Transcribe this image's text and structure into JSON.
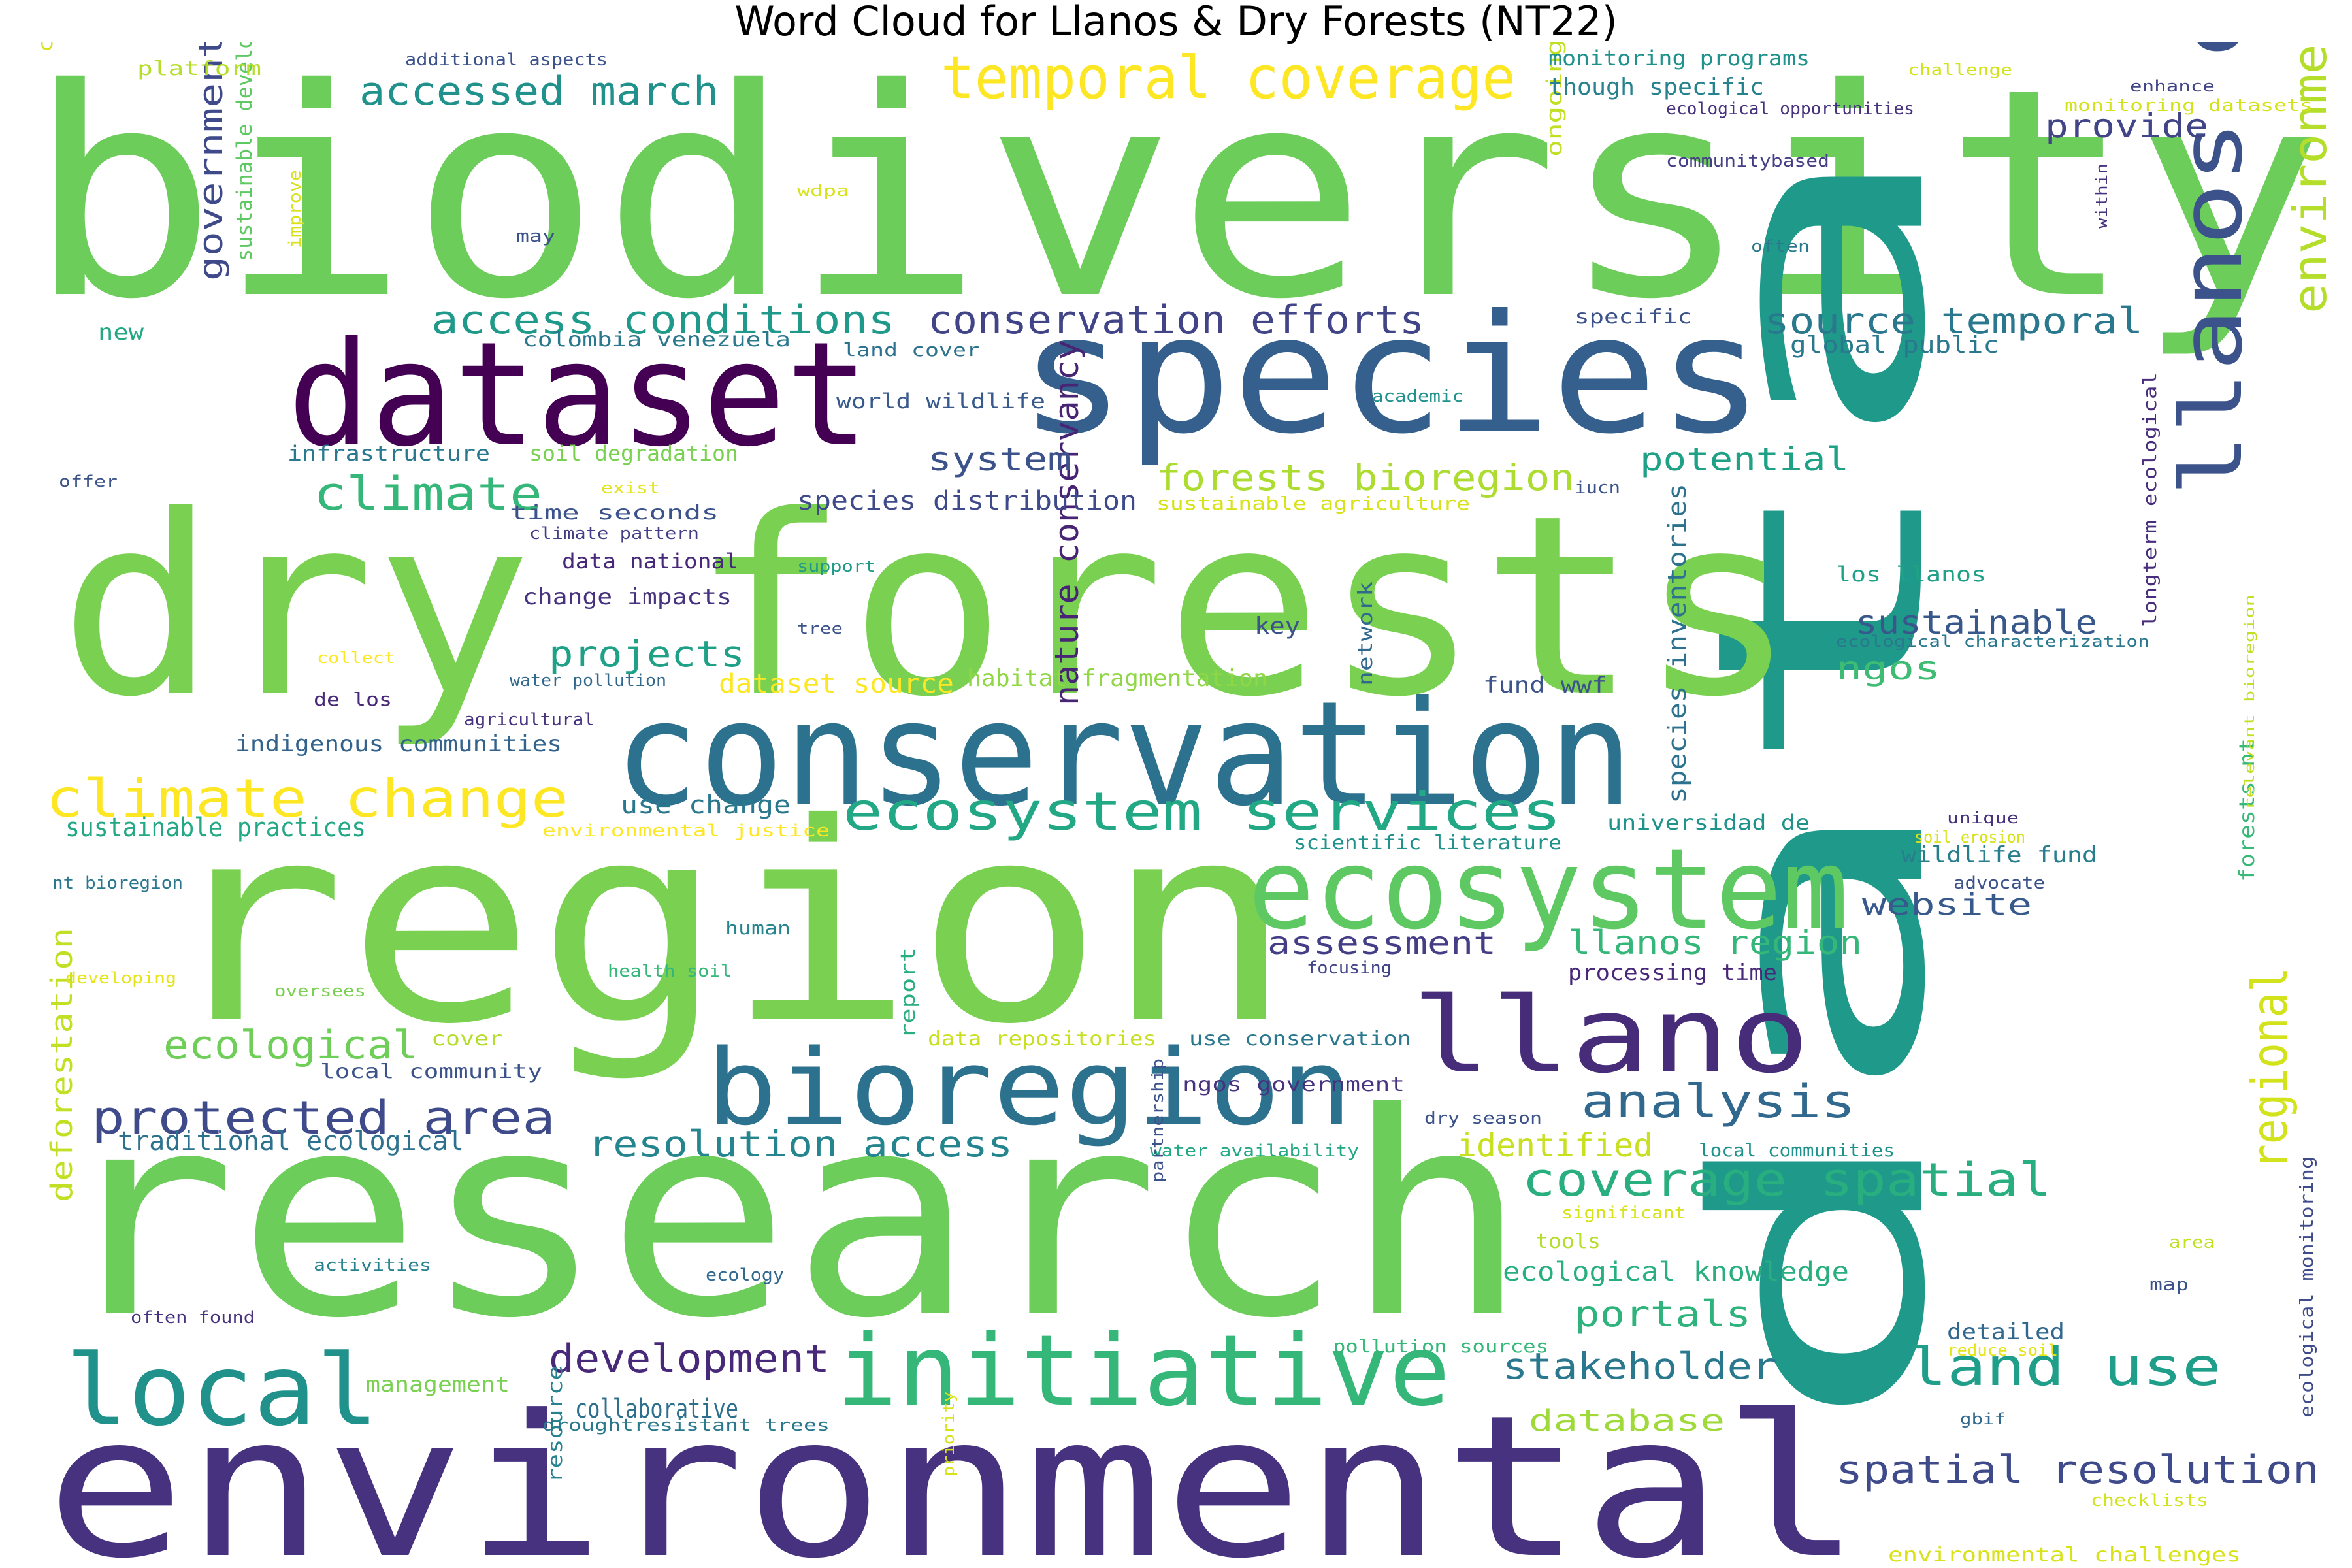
{
  "title": "Word Cloud for Llanos & Dry Forests (NT22)",
  "words": [
    {
      "text": "biodiversity",
      "color": "#6ccd5a"
    },
    {
      "text": "data",
      "color": "#1f9a8a"
    },
    {
      "text": "dry forests",
      "color": "#7ad151"
    },
    {
      "text": "region",
      "color": "#7ad151"
    },
    {
      "text": "research",
      "color": "#6ccd5a"
    },
    {
      "text": "environmental",
      "color": "#46327e"
    },
    {
      "text": "species",
      "color": "#355f8d"
    },
    {
      "text": "dataset",
      "color": "#440154"
    },
    {
      "text": "conservation",
      "color": "#2c728e"
    },
    {
      "text": "ecosystem",
      "color": "#5ec962"
    },
    {
      "text": "bioregion",
      "color": "#2c728e"
    },
    {
      "text": "llano",
      "color": "#472c7a"
    },
    {
      "text": "llanos dry",
      "color": "#3b528b"
    },
    {
      "text": "initiative",
      "color": "#35b779"
    },
    {
      "text": "local",
      "color": "#21918c"
    },
    {
      "text": "temporal coverage",
      "color": "#fde725"
    },
    {
      "text": "climate change",
      "color": "#fde725"
    },
    {
      "text": "ecosystem services",
      "color": "#22a884"
    },
    {
      "text": "environmental monitoring",
      "color": "#b5de2b"
    },
    {
      "text": "access conditions",
      "color": "#1f9a8a"
    },
    {
      "text": "conservation efforts",
      "color": "#414487"
    },
    {
      "text": "accessed march",
      "color": "#21918c"
    },
    {
      "text": "climate",
      "color": "#35b779"
    },
    {
      "text": "protected area",
      "color": "#3e4a89"
    },
    {
      "text": "analysis",
      "color": "#31688e"
    },
    {
      "text": "land use",
      "color": "#1f9e89"
    },
    {
      "text": "coverage spatial",
      "color": "#29af7f"
    },
    {
      "text": "regional",
      "color": "#d2e21b"
    },
    {
      "text": "spatial resolution",
      "color": "#3e4a89"
    },
    {
      "text": "development",
      "color": "#482878"
    },
    {
      "text": "stakeholder",
      "color": "#2a788e"
    },
    {
      "text": "resolution access",
      "color": "#25858e"
    },
    {
      "text": "ecological",
      "color": "#6ece58"
    },
    {
      "text": "projects",
      "color": "#1fa187"
    },
    {
      "text": "forests bioregion",
      "color": "#addc30"
    },
    {
      "text": "source temporal",
      "color": "#2a788e"
    },
    {
      "text": "government agencies",
      "color": "#3e4a89"
    },
    {
      "text": "nature conservancy",
      "color": "#482475"
    },
    {
      "text": "sustainable",
      "color": "#38588c"
    },
    {
      "text": "provide",
      "color": "#414487"
    },
    {
      "text": "potential",
      "color": "#1fa187"
    },
    {
      "text": "portals",
      "color": "#2eb37c"
    },
    {
      "text": "system",
      "color": "#3b528b"
    },
    {
      "text": "assessment",
      "color": "#433e85"
    },
    {
      "text": "llanos region",
      "color": "#35b779"
    },
    {
      "text": "identified",
      "color": "#c8e020"
    },
    {
      "text": "website",
      "color": "#38598c"
    },
    {
      "text": "ngos",
      "color": "#3fbc73"
    },
    {
      "text": "database",
      "color": "#9fda3a"
    },
    {
      "text": "collaborative",
      "color": "#2d708e"
    },
    {
      "text": "ecological knowledge",
      "color": "#29af7f"
    },
    {
      "text": "sustainable practices",
      "color": "#22a884"
    },
    {
      "text": "traditional ecological",
      "color": "#2c728e"
    },
    {
      "text": "deforestation",
      "color": "#c2df23"
    },
    {
      "text": "species inventories",
      "color": "#2c728e"
    },
    {
      "text": "species distribution",
      "color": "#3e4a89"
    },
    {
      "text": "dataset source",
      "color": "#fde725"
    },
    {
      "text": "habitat fragmentation",
      "color": "#8fd744"
    },
    {
      "text": "use change",
      "color": "#2a788e"
    },
    {
      "text": "processing time",
      "color": "#482878"
    },
    {
      "text": "fund wwf",
      "color": "#3b528b"
    },
    {
      "text": "wildlife fund",
      "color": "#277f8e"
    },
    {
      "text": "management",
      "color": "#7ad151"
    },
    {
      "text": "indigenous communities",
      "color": "#33638d"
    },
    {
      "text": "change impacts",
      "color": "#46327e"
    },
    {
      "text": "data national",
      "color": "#482878"
    },
    {
      "text": "sustainable development",
      "color": "#5ec962"
    },
    {
      "text": "ongoing global",
      "color": "#c2df23"
    },
    {
      "text": "los llanos",
      "color": "#1fa187"
    },
    {
      "text": "tools",
      "color": "#b5de2b"
    },
    {
      "text": "detailed",
      "color": "#31688e"
    },
    {
      "text": "global public",
      "color": "#2a788e"
    },
    {
      "text": "though specific",
      "color": "#26828e"
    },
    {
      "text": "monitoring programs",
      "color": "#20928c"
    },
    {
      "text": "forests nt",
      "color": "#38b977"
    },
    {
      "text": "key",
      "color": "#3b528b"
    },
    {
      "text": "universidad de",
      "color": "#20928c"
    },
    {
      "text": "soil degradation",
      "color": "#7ad151"
    },
    {
      "text": "infrastructure",
      "color": "#2a788e"
    },
    {
      "text": "world wildlife",
      "color": "#38598c"
    },
    {
      "text": "colombia venezuela",
      "color": "#2a788e"
    },
    {
      "text": "time seconds",
      "color": "#3b528b"
    },
    {
      "text": "cover",
      "color": "#b5de2b"
    },
    {
      "text": "local community",
      "color": "#3b528b"
    },
    {
      "text": "data repositories",
      "color": "#c8e020"
    },
    {
      "text": "use conservation",
      "color": "#2a788e"
    },
    {
      "text": "ngos government",
      "color": "#46327e"
    },
    {
      "text": "network",
      "color": "#31688e"
    },
    {
      "text": "report",
      "color": "#29af7f"
    },
    {
      "text": "resource",
      "color": "#26828e"
    },
    {
      "text": "longterm ecological",
      "color": "#472d7b"
    },
    {
      "text": "ecological monitoring",
      "color": "#3e4a89"
    },
    {
      "text": "local communities",
      "color": "#20928c"
    },
    {
      "text": "human",
      "color": "#25858e"
    },
    {
      "text": "de los",
      "color": "#482878"
    },
    {
      "text": "platform",
      "color": "#b5de2b"
    },
    {
      "text": "additional aspects",
      "color": "#3b528b"
    },
    {
      "text": "challenge",
      "color": "#d2e21b"
    },
    {
      "text": "enhance",
      "color": "#414487"
    },
    {
      "text": "ecological opportunities",
      "color": "#46327e"
    },
    {
      "text": "monitoring datasets",
      "color": "#d2e21b"
    },
    {
      "text": "communitybased",
      "color": "#433e85"
    },
    {
      "text": "within",
      "color": "#46327e"
    },
    {
      "text": "often",
      "color": "#2a788e"
    },
    {
      "text": "specific",
      "color": "#3b528b"
    },
    {
      "text": "land cover",
      "color": "#2c728e"
    },
    {
      "text": "academic",
      "color": "#20928c"
    },
    {
      "text": "iucn",
      "color": "#3b528b"
    },
    {
      "text": "sustainable agriculture",
      "color": "#d8e219"
    },
    {
      "text": "ecological characterization",
      "color": "#2a788e"
    },
    {
      "text": "relevant bioregion",
      "color": "#c2df23"
    },
    {
      "text": "unique",
      "color": "#46327e"
    },
    {
      "text": "soil erosion",
      "color": "#d8e219"
    },
    {
      "text": "advocate",
      "color": "#3b528b"
    },
    {
      "text": "focusing",
      "color": "#414487"
    },
    {
      "text": "dry season",
      "color": "#3b528b"
    },
    {
      "text": "water availability",
      "color": "#22a884"
    },
    {
      "text": "significant",
      "color": "#d8e219"
    },
    {
      "text": "area",
      "color": "#c2df23"
    },
    {
      "text": "map",
      "color": "#3b528b"
    },
    {
      "text": "reduce soil",
      "color": "#e5e419"
    },
    {
      "text": "gbif",
      "color": "#31688e"
    },
    {
      "text": "checklists",
      "color": "#d2e21b"
    },
    {
      "text": "environmental challenges",
      "color": "#d8e219"
    },
    {
      "text": "pollution sources",
      "color": "#35b779"
    },
    {
      "text": "droughtresistant trees",
      "color": "#2a788e"
    },
    {
      "text": "priority",
      "color": "#d8e219"
    },
    {
      "text": "partnership",
      "color": "#3b528b"
    },
    {
      "text": "ecology",
      "color": "#31688e"
    },
    {
      "text": "activities",
      "color": "#26828e"
    },
    {
      "text": "often found",
      "color": "#46327e"
    },
    {
      "text": "oversees",
      "color": "#7ad151"
    },
    {
      "text": "developing",
      "color": "#e5e419"
    },
    {
      "text": "health soil",
      "color": "#35b779"
    },
    {
      "text": "nt bioregion",
      "color": "#2a788e"
    },
    {
      "text": "environmental justice",
      "color": "#fde725"
    },
    {
      "text": "scientific literature",
      "color": "#20928c"
    },
    {
      "text": "agricultural",
      "color": "#46327e"
    },
    {
      "text": "water pollution",
      "color": "#31688e"
    },
    {
      "text": "collect",
      "color": "#fde725"
    },
    {
      "text": "tree",
      "color": "#3b528b"
    },
    {
      "text": "support",
      "color": "#1f9a8a"
    },
    {
      "text": "climate pattern",
      "color": "#433e85"
    },
    {
      "text": "exist",
      "color": "#e5e419"
    },
    {
      "text": "offer",
      "color": "#3b528b"
    },
    {
      "text": "new",
      "color": "#22a884"
    },
    {
      "text": "may",
      "color": "#3b528b"
    },
    {
      "text": "wdpa",
      "color": "#d8e219"
    },
    {
      "text": "improve",
      "color": "#d8e219"
    },
    {
      "text": "conservation planning",
      "color": "#d8e219"
    }
  ]
}
